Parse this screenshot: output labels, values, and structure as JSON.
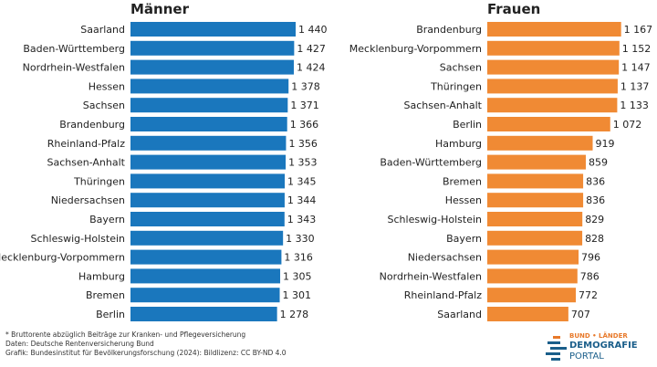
{
  "colors": {
    "left": "#1a77bd",
    "right": "#f08a34",
    "text": "#222222"
  },
  "chart_data": [
    {
      "type": "bar",
      "title": "Männer",
      "orientation": "horizontal",
      "xlim": [
        0,
        1440
      ],
      "categories": [
        "Saarland",
        "Baden-Württemberg",
        "Nordrhein-Westfalen",
        "Hessen",
        "Sachsen",
        "Brandenburg",
        "Rheinland-Pfalz",
        "Sachsen-Anhalt",
        "Thüringen",
        "Niedersachsen",
        "Bayern",
        "Schleswig-Holstein",
        "Mecklenburg-Vorpommern",
        "Hamburg",
        "Bremen",
        "Berlin"
      ],
      "values": [
        1440,
        1427,
        1424,
        1378,
        1371,
        1366,
        1356,
        1353,
        1345,
        1344,
        1343,
        1330,
        1316,
        1305,
        1301,
        1278
      ],
      "value_labels": [
        "1 440",
        "1 427",
        "1 424",
        "1 378",
        "1 371",
        "1 366",
        "1 356",
        "1 353",
        "1 345",
        "1 344",
        "1 343",
        "1 330",
        "1 316",
        "1 305",
        "1 301",
        "1 278"
      ]
    },
    {
      "type": "bar",
      "title": "Frauen",
      "orientation": "horizontal",
      "xlim": [
        0,
        1440
      ],
      "categories": [
        "Brandenburg",
        "Mecklenburg-Vorpommern",
        "Sachsen",
        "Thüringen",
        "Sachsen-Anhalt",
        "Berlin",
        "Hamburg",
        "Baden-Württemberg",
        "Bremen",
        "Hessen",
        "Schleswig-Holstein",
        "Bayern",
        "Niedersachsen",
        "Nordrhein-Westfalen",
        "Rheinland-Pfalz",
        "Saarland"
      ],
      "values": [
        1167,
        1152,
        1147,
        1137,
        1133,
        1072,
        919,
        859,
        836,
        836,
        829,
        828,
        796,
        786,
        772,
        707
      ],
      "value_labels": [
        "1 167",
        "1 152",
        "1 147",
        "1 137",
        "1 133",
        "1 072",
        "919",
        "859",
        "836",
        "836",
        "829",
        "828",
        "796",
        "786",
        "772",
        "707"
      ]
    }
  ],
  "footnotes": [
    "* Bruttorente abzüglich Beiträge zur Kranken- und Pflegeversicherung",
    "Daten: Deutsche Rentenversicherung Bund",
    "Grafik: Bundesinstitut für Bevölkerungsforschung (2024): Bildlizenz: CC BY-ND 4.0"
  ],
  "logo": {
    "top": "BUND • LÄNDER",
    "main": "DEMOGRAFIE",
    "sub": "PORTAL"
  }
}
